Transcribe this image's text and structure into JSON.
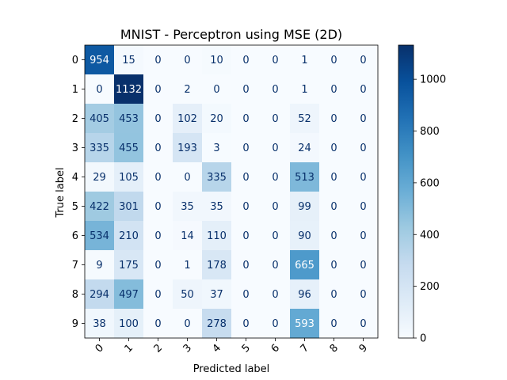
{
  "chart_data": {
    "type": "heatmap",
    "title": "MNIST - Perceptron using MSE (2D)",
    "xlabel": "Predicted label",
    "ylabel": "True label",
    "x_categories": [
      "0",
      "1",
      "2",
      "3",
      "4",
      "5",
      "6",
      "7",
      "8",
      "9"
    ],
    "y_categories": [
      "0",
      "1",
      "2",
      "3",
      "4",
      "5",
      "6",
      "7",
      "8",
      "9"
    ],
    "matrix": [
      [
        954,
        15,
        0,
        0,
        10,
        0,
        0,
        1,
        0,
        0
      ],
      [
        0,
        1132,
        0,
        2,
        0,
        0,
        0,
        1,
        0,
        0
      ],
      [
        405,
        453,
        0,
        102,
        20,
        0,
        0,
        52,
        0,
        0
      ],
      [
        335,
        455,
        0,
        193,
        3,
        0,
        0,
        24,
        0,
        0
      ],
      [
        29,
        105,
        0,
        0,
        335,
        0,
        0,
        513,
        0,
        0
      ],
      [
        422,
        301,
        0,
        35,
        35,
        0,
        0,
        99,
        0,
        0
      ],
      [
        534,
        210,
        0,
        14,
        110,
        0,
        0,
        90,
        0,
        0
      ],
      [
        9,
        175,
        0,
        1,
        178,
        0,
        0,
        665,
        0,
        0
      ],
      [
        294,
        497,
        0,
        50,
        37,
        0,
        0,
        96,
        0,
        0
      ],
      [
        38,
        100,
        0,
        0,
        278,
        0,
        0,
        593,
        0,
        0
      ]
    ],
    "colormap": "Blues",
    "value_range": [
      0,
      1132
    ],
    "colorbar_ticks": [
      0,
      200,
      400,
      600,
      800,
      1000
    ],
    "grid": false
  }
}
